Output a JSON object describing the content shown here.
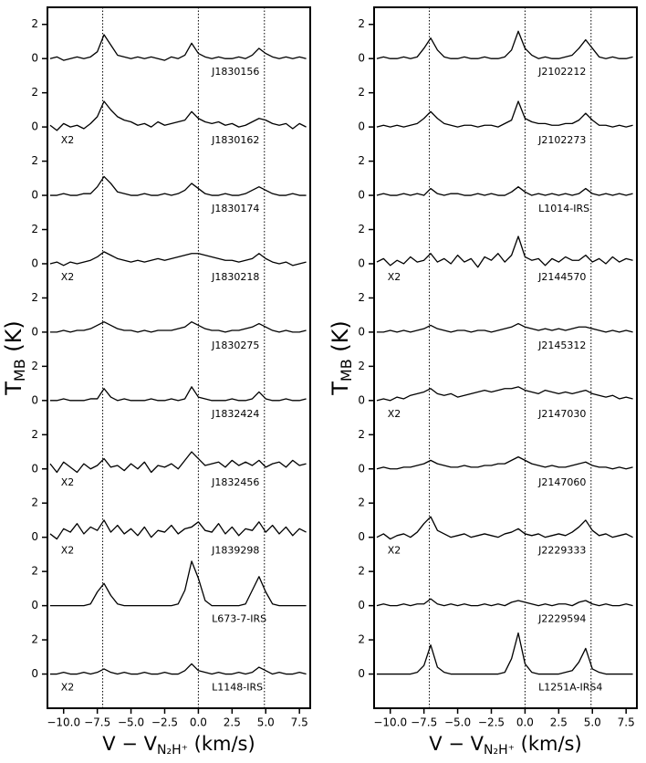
{
  "chart_data": [
    {
      "type": "line",
      "color": "#000000",
      "x": [
        -11,
        -10.5,
        -10,
        -9.5,
        -9,
        -8.5,
        -8,
        -7.5,
        -7,
        -6.5,
        -6,
        -5.5,
        -5,
        -4.5,
        -4,
        -3.5,
        -3,
        -2.5,
        -2,
        -1.5,
        -1,
        -0.5,
        0,
        0.5,
        1,
        1.5,
        2,
        2.5,
        3,
        3.5,
        4,
        4.5,
        5,
        5.5,
        6,
        6.5,
        7,
        7.5,
        8
      ],
      "xlim": [
        -11.2,
        8.3
      ],
      "xticks": [
        {
          "value": -10,
          "label": "−10.0"
        },
        {
          "value": -7.5,
          "label": "−7.5"
        },
        {
          "value": -5,
          "label": "−5.0"
        },
        {
          "value": -2.5,
          "label": "−2.5"
        },
        {
          "value": 0,
          "label": "0.0"
        },
        {
          "value": 2.5,
          "label": "2.5"
        },
        {
          "value": 5,
          "label": "5.0"
        },
        {
          "value": 7.5,
          "label": "7.5"
        }
      ],
      "ylim": [
        -1,
        3
      ],
      "yticks": [
        0,
        2
      ],
      "vlines": [
        -7.1,
        0,
        4.9
      ],
      "xlabel": {
        "main": "V − V",
        "sub": "N₂H⁺",
        "unit": " (km/s)"
      },
      "ylabel": {
        "main": "T",
        "sub": "MB",
        "unit": " (K)"
      },
      "series": [
        {
          "name": "J1830156",
          "values": [
            0.0,
            0.1,
            -0.1,
            0.0,
            0.1,
            0.0,
            0.1,
            0.4,
            1.4,
            0.8,
            0.2,
            0.1,
            0.0,
            0.1,
            0.0,
            0.1,
            0.0,
            -0.1,
            0.1,
            0.0,
            0.2,
            0.9,
            0.3,
            0.1,
            0.0,
            0.1,
            0.0,
            0.0,
            0.1,
            0.0,
            0.2,
            0.6,
            0.3,
            0.1,
            0.0,
            0.1,
            0.0,
            0.1,
            0.0
          ]
        },
        {
          "name": "J1830162",
          "scale_label": "X2",
          "values": [
            0.1,
            -0.2,
            0.2,
            0.0,
            0.1,
            -0.1,
            0.2,
            0.6,
            1.5,
            1.0,
            0.6,
            0.4,
            0.3,
            0.1,
            0.2,
            0.0,
            0.3,
            0.1,
            0.2,
            0.3,
            0.4,
            0.9,
            0.5,
            0.3,
            0.2,
            0.3,
            0.1,
            0.2,
            0.0,
            0.1,
            0.3,
            0.5,
            0.4,
            0.2,
            0.1,
            0.2,
            -0.1,
            0.2,
            0.0
          ]
        },
        {
          "name": "J1830174",
          "values": [
            0.0,
            0.0,
            0.1,
            0.0,
            0.0,
            0.1,
            0.1,
            0.5,
            1.1,
            0.7,
            0.2,
            0.1,
            0.0,
            0.0,
            0.1,
            0.0,
            0.0,
            0.1,
            0.0,
            0.1,
            0.3,
            0.7,
            0.4,
            0.1,
            0.0,
            0.0,
            0.1,
            0.0,
            0.0,
            0.1,
            0.3,
            0.5,
            0.3,
            0.1,
            0.0,
            0.0,
            0.1,
            0.0,
            0.0
          ]
        },
        {
          "name": "J1830218",
          "scale_label": "X2",
          "values": [
            0.0,
            0.1,
            -0.1,
            0.1,
            0.0,
            0.1,
            0.2,
            0.4,
            0.7,
            0.5,
            0.3,
            0.2,
            0.1,
            0.2,
            0.1,
            0.2,
            0.3,
            0.2,
            0.3,
            0.4,
            0.5,
            0.6,
            0.6,
            0.5,
            0.4,
            0.3,
            0.2,
            0.2,
            0.1,
            0.2,
            0.3,
            0.6,
            0.3,
            0.1,
            0.0,
            0.1,
            -0.1,
            0.0,
            0.1
          ]
        },
        {
          "name": "J1830275",
          "values": [
            0.0,
            0.0,
            0.1,
            0.0,
            0.1,
            0.1,
            0.2,
            0.4,
            0.6,
            0.4,
            0.2,
            0.1,
            0.1,
            0.0,
            0.1,
            0.0,
            0.1,
            0.1,
            0.1,
            0.2,
            0.3,
            0.6,
            0.4,
            0.2,
            0.1,
            0.1,
            0.0,
            0.1,
            0.1,
            0.2,
            0.3,
            0.5,
            0.3,
            0.1,
            0.0,
            0.1,
            0.0,
            0.0,
            0.1
          ]
        },
        {
          "name": "J1832424",
          "values": [
            0.0,
            0.0,
            0.1,
            0.0,
            0.0,
            0.0,
            0.1,
            0.1,
            0.7,
            0.2,
            0.0,
            0.1,
            0.0,
            0.0,
            0.0,
            0.1,
            0.0,
            0.0,
            0.1,
            0.0,
            0.1,
            0.8,
            0.2,
            0.1,
            0.0,
            0.0,
            0.0,
            0.1,
            0.0,
            0.0,
            0.1,
            0.5,
            0.1,
            0.0,
            0.0,
            0.1,
            0.0,
            0.0,
            0.1
          ]
        },
        {
          "name": "J1832456",
          "scale_label": "X2",
          "values": [
            0.3,
            -0.2,
            0.4,
            0.1,
            -0.2,
            0.3,
            0.0,
            0.2,
            0.6,
            0.1,
            0.2,
            -0.1,
            0.3,
            0.0,
            0.4,
            -0.2,
            0.2,
            0.1,
            0.3,
            0.0,
            0.5,
            1.0,
            0.6,
            0.2,
            0.3,
            0.4,
            0.1,
            0.5,
            0.2,
            0.4,
            0.2,
            0.5,
            0.1,
            0.3,
            0.4,
            0.1,
            0.5,
            0.2,
            0.3
          ]
        },
        {
          "name": "J1839298",
          "scale_label": "X2",
          "values": [
            0.2,
            -0.1,
            0.5,
            0.3,
            0.8,
            0.2,
            0.6,
            0.4,
            1.0,
            0.3,
            0.7,
            0.2,
            0.5,
            0.1,
            0.6,
            0.0,
            0.4,
            0.3,
            0.7,
            0.2,
            0.5,
            0.6,
            0.9,
            0.4,
            0.3,
            0.8,
            0.2,
            0.6,
            0.1,
            0.5,
            0.4,
            0.9,
            0.3,
            0.7,
            0.2,
            0.6,
            0.1,
            0.5,
            0.3
          ]
        },
        {
          "name": "L673-7-IRS",
          "values": [
            0.0,
            0.0,
            0.0,
            0.0,
            0.0,
            0.0,
            0.1,
            0.8,
            1.3,
            0.6,
            0.1,
            0.0,
            0.0,
            0.0,
            0.0,
            0.0,
            0.0,
            0.0,
            0.0,
            0.1,
            0.9,
            2.6,
            1.6,
            0.3,
            0.0,
            0.0,
            0.0,
            0.0,
            0.0,
            0.1,
            0.9,
            1.7,
            0.8,
            0.1,
            0.0,
            0.0,
            0.0,
            0.0,
            0.0
          ]
        },
        {
          "name": "L1148-IRS",
          "scale_label": "X2",
          "values": [
            0.0,
            0.0,
            0.1,
            0.0,
            0.0,
            0.1,
            0.0,
            0.1,
            0.3,
            0.1,
            0.0,
            0.1,
            0.0,
            0.0,
            0.1,
            0.0,
            0.0,
            0.1,
            0.0,
            0.0,
            0.2,
            0.6,
            0.2,
            0.1,
            0.0,
            0.1,
            0.0,
            0.0,
            0.1,
            0.0,
            0.1,
            0.4,
            0.2,
            0.0,
            0.1,
            0.0,
            0.0,
            0.1,
            0.0
          ]
        }
      ]
    },
    {
      "type": "line",
      "color": "#000000",
      "x": [
        -11,
        -10.5,
        -10,
        -9.5,
        -9,
        -8.5,
        -8,
        -7.5,
        -7,
        -6.5,
        -6,
        -5.5,
        -5,
        -4.5,
        -4,
        -3.5,
        -3,
        -2.5,
        -2,
        -1.5,
        -1,
        -0.5,
        0,
        0.5,
        1,
        1.5,
        2,
        2.5,
        3,
        3.5,
        4,
        4.5,
        5,
        5.5,
        6,
        6.5,
        7,
        7.5,
        8
      ],
      "xlim": [
        -11.2,
        8.3
      ],
      "xticks": [
        {
          "value": -10,
          "label": "−10.0"
        },
        {
          "value": -7.5,
          "label": "−7.5"
        },
        {
          "value": -5,
          "label": "−5.0"
        },
        {
          "value": -2.5,
          "label": "−2.5"
        },
        {
          "value": 0,
          "label": "0.0"
        },
        {
          "value": 2.5,
          "label": "2.5"
        },
        {
          "value": 5,
          "label": "5.0"
        },
        {
          "value": 7.5,
          "label": "7.5"
        }
      ],
      "ylim": [
        -1,
        3
      ],
      "yticks": [
        0,
        2
      ],
      "vlines": [
        -7.1,
        0,
        4.9
      ],
      "xlabel": {
        "main": "V − V",
        "sub": "N₂H⁺",
        "unit": " (km/s)"
      },
      "ylabel": {
        "main": "T",
        "sub": "MB",
        "unit": " (K)"
      },
      "series": [
        {
          "name": "J2102212",
          "values": [
            0.0,
            0.1,
            0.0,
            0.0,
            0.1,
            0.0,
            0.1,
            0.6,
            1.2,
            0.5,
            0.1,
            0.0,
            0.0,
            0.1,
            0.0,
            0.0,
            0.1,
            0.0,
            0.0,
            0.1,
            0.5,
            1.6,
            0.6,
            0.2,
            0.0,
            0.1,
            0.0,
            0.0,
            0.1,
            0.2,
            0.6,
            1.1,
            0.6,
            0.1,
            0.0,
            0.1,
            0.0,
            0.0,
            0.1
          ]
        },
        {
          "name": "J2102273",
          "values": [
            0.0,
            0.1,
            0.0,
            0.1,
            0.0,
            0.1,
            0.2,
            0.5,
            0.9,
            0.5,
            0.2,
            0.1,
            0.0,
            0.1,
            0.1,
            0.0,
            0.1,
            0.1,
            0.0,
            0.2,
            0.4,
            1.5,
            0.5,
            0.3,
            0.2,
            0.2,
            0.1,
            0.1,
            0.2,
            0.2,
            0.4,
            0.8,
            0.4,
            0.1,
            0.1,
            0.0,
            0.1,
            0.0,
            0.1
          ]
        },
        {
          "name": "L1014-IRS",
          "values": [
            0.0,
            0.1,
            0.0,
            0.0,
            0.1,
            0.0,
            0.1,
            0.0,
            0.4,
            0.1,
            0.0,
            0.1,
            0.1,
            0.0,
            0.0,
            0.1,
            0.0,
            0.1,
            0.0,
            0.0,
            0.2,
            0.5,
            0.2,
            0.0,
            0.1,
            0.0,
            0.1,
            0.0,
            0.1,
            0.0,
            0.1,
            0.4,
            0.1,
            0.0,
            0.1,
            0.0,
            0.1,
            0.0,
            0.1
          ]
        },
        {
          "name": "J2144570",
          "scale_label": "X2",
          "values": [
            0.1,
            0.3,
            -0.1,
            0.2,
            0.0,
            0.4,
            0.1,
            0.2,
            0.6,
            0.1,
            0.3,
            0.0,
            0.5,
            0.1,
            0.3,
            -0.2,
            0.4,
            0.2,
            0.6,
            0.1,
            0.5,
            1.6,
            0.4,
            0.2,
            0.3,
            -0.1,
            0.3,
            0.1,
            0.4,
            0.2,
            0.2,
            0.5,
            0.1,
            0.3,
            0.0,
            0.4,
            0.1,
            0.3,
            0.2
          ]
        },
        {
          "name": "J2145312",
          "values": [
            0.0,
            0.0,
            0.1,
            0.0,
            0.1,
            0.0,
            0.1,
            0.2,
            0.4,
            0.2,
            0.1,
            0.0,
            0.1,
            0.1,
            0.0,
            0.1,
            0.1,
            0.0,
            0.1,
            0.2,
            0.3,
            0.5,
            0.3,
            0.2,
            0.1,
            0.2,
            0.1,
            0.2,
            0.1,
            0.2,
            0.3,
            0.3,
            0.2,
            0.1,
            0.0,
            0.1,
            0.0,
            0.1,
            0.0
          ]
        },
        {
          "name": "J2147030",
          "scale_label": "X2",
          "values": [
            0.0,
            0.1,
            0.0,
            0.2,
            0.1,
            0.3,
            0.4,
            0.5,
            0.7,
            0.4,
            0.3,
            0.4,
            0.2,
            0.3,
            0.4,
            0.5,
            0.6,
            0.5,
            0.6,
            0.7,
            0.7,
            0.8,
            0.6,
            0.5,
            0.4,
            0.6,
            0.5,
            0.4,
            0.5,
            0.4,
            0.5,
            0.6,
            0.4,
            0.3,
            0.2,
            0.3,
            0.1,
            0.2,
            0.1
          ]
        },
        {
          "name": "J2147060",
          "values": [
            0.0,
            0.1,
            0.0,
            0.0,
            0.1,
            0.1,
            0.2,
            0.3,
            0.5,
            0.3,
            0.2,
            0.1,
            0.1,
            0.2,
            0.1,
            0.1,
            0.2,
            0.2,
            0.3,
            0.3,
            0.5,
            0.7,
            0.5,
            0.3,
            0.2,
            0.1,
            0.2,
            0.1,
            0.1,
            0.2,
            0.3,
            0.4,
            0.2,
            0.1,
            0.1,
            0.0,
            0.1,
            0.0,
            0.1
          ]
        },
        {
          "name": "J2229333",
          "scale_label": "X2",
          "values": [
            0.0,
            0.2,
            -0.1,
            0.1,
            0.2,
            0.0,
            0.3,
            0.8,
            1.2,
            0.4,
            0.2,
            0.0,
            0.1,
            0.2,
            0.0,
            0.1,
            0.2,
            0.1,
            0.0,
            0.2,
            0.3,
            0.5,
            0.2,
            0.1,
            0.2,
            0.0,
            0.1,
            0.2,
            0.1,
            0.3,
            0.6,
            1.0,
            0.4,
            0.1,
            0.2,
            0.0,
            0.1,
            0.2,
            0.0
          ]
        },
        {
          "name": "J2229594",
          "values": [
            0.0,
            0.1,
            0.0,
            0.0,
            0.1,
            0.0,
            0.1,
            0.1,
            0.4,
            0.1,
            0.0,
            0.1,
            0.0,
            0.1,
            0.0,
            0.0,
            0.1,
            0.0,
            0.1,
            0.0,
            0.2,
            0.3,
            0.2,
            0.1,
            0.0,
            0.1,
            0.0,
            0.1,
            0.1,
            0.0,
            0.2,
            0.3,
            0.1,
            0.0,
            0.1,
            0.0,
            0.0,
            0.1,
            0.0
          ]
        },
        {
          "name": "L1251A-IRS4",
          "values": [
            0.0,
            0.0,
            0.0,
            0.0,
            0.0,
            0.0,
            0.1,
            0.5,
            1.7,
            0.4,
            0.1,
            0.0,
            0.0,
            0.0,
            0.0,
            0.0,
            0.0,
            0.0,
            0.0,
            0.1,
            0.9,
            2.4,
            0.6,
            0.1,
            0.0,
            0.0,
            0.0,
            0.0,
            0.1,
            0.2,
            0.7,
            1.5,
            0.3,
            0.1,
            0.0,
            0.0,
            0.0,
            0.0,
            0.0
          ]
        }
      ]
    }
  ]
}
